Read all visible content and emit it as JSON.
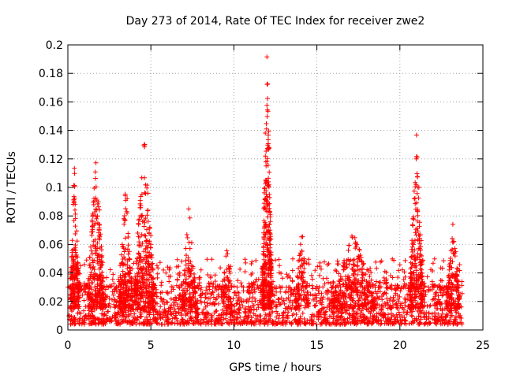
{
  "chart_data": {
    "type": "scatter",
    "title": "Day 273 of 2014, Rate Of TEC Index for receiver zwe2",
    "xlabel": "GPS time / hours",
    "ylabel": "ROTI / TECUs",
    "xlim": [
      0,
      25
    ],
    "ylim": [
      0,
      0.2
    ],
    "xticks": [
      0,
      5,
      10,
      15,
      20,
      25
    ],
    "yticks": [
      0,
      0.02,
      0.04,
      0.06,
      0.08,
      0.1,
      0.12,
      0.14,
      0.16,
      0.18,
      0.2
    ],
    "xtick_labels": [
      "0",
      "5",
      "10",
      "15",
      "20",
      "25"
    ],
    "ytick_labels": [
      "0",
      "0.02",
      "0.04",
      "0.06",
      "0.08",
      "0.1",
      "0.12",
      "0.14",
      "0.16",
      "0.18",
      "0.2"
    ],
    "grid": true,
    "marker": "+",
    "color": "#ff0000",
    "data_range_hours": [
      0,
      23.75
    ],
    "baseline": {
      "min": 0.004,
      "typical": 0.015,
      "upper": 0.03
    },
    "features": [
      {
        "name": "early-spike",
        "x_center": 0.4,
        "x_halfwidth": 0.25,
        "peak": 0.12,
        "count": 160
      },
      {
        "name": "hour1-2-spike",
        "x_center": 1.7,
        "x_halfwidth": 0.5,
        "peak": 0.122,
        "count": 230
      },
      {
        "name": "hour3-spike",
        "x_center": 3.5,
        "x_halfwidth": 0.4,
        "peak": 0.107,
        "count": 160
      },
      {
        "name": "hour4-5-spike",
        "x_center": 4.6,
        "x_halfwidth": 0.6,
        "peak": 0.136,
        "count": 260
      },
      {
        "name": "hour7-spike",
        "x_center": 7.3,
        "x_halfwidth": 0.4,
        "peak": 0.09,
        "count": 110
      },
      {
        "name": "hour9-spike",
        "x_center": 9.6,
        "x_halfwidth": 0.3,
        "peak": 0.066,
        "count": 60
      },
      {
        "name": "hour12-main-spike",
        "x_center": 12.0,
        "x_halfwidth": 0.28,
        "peak": 0.2,
        "count": 320
      },
      {
        "name": "hour14-spike",
        "x_center": 14.1,
        "x_halfwidth": 0.4,
        "peak": 0.072,
        "count": 90
      },
      {
        "name": "hour16-18-spike",
        "x_center": 17.2,
        "x_halfwidth": 1.3,
        "peak": 0.07,
        "count": 260
      },
      {
        "name": "hour21-spike",
        "x_center": 21.0,
        "x_halfwidth": 0.4,
        "peak": 0.139,
        "count": 200
      },
      {
        "name": "hour23-spike",
        "x_center": 23.2,
        "x_halfwidth": 0.4,
        "peak": 0.076,
        "count": 120
      }
    ]
  }
}
